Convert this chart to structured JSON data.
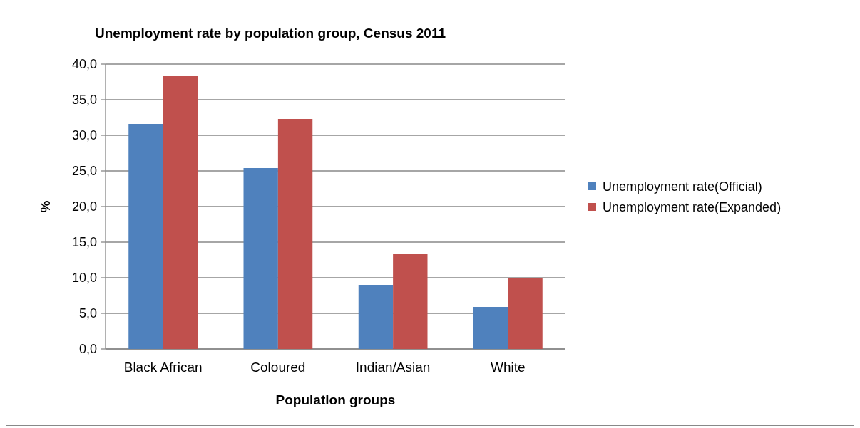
{
  "chart_data": {
    "type": "bar",
    "title": "Unemployment rate by population group, Census 2011",
    "xlabel": "Population groups",
    "ylabel": "%",
    "categories": [
      "Black African",
      "Coloured",
      "Indian/Asian",
      "White"
    ],
    "series": [
      {
        "name": "Unemployment rate(Official)",
        "color": "#4f81bd",
        "values": [
          31.6,
          25.4,
          9.0,
          5.9
        ]
      },
      {
        "name": "Unemployment rate(Expanded)",
        "color": "#c0504d",
        "values": [
          38.3,
          32.3,
          13.4,
          9.9
        ]
      }
    ],
    "ylim": [
      0,
      40
    ],
    "yticks": [
      {
        "value": 0,
        "label": "0,0"
      },
      {
        "value": 5,
        "label": "5,0"
      },
      {
        "value": 10,
        "label": "10,0"
      },
      {
        "value": 15,
        "label": "15,0"
      },
      {
        "value": 20,
        "label": "20,0"
      },
      {
        "value": 25,
        "label": "25,0"
      },
      {
        "value": 30,
        "label": "30,0"
      },
      {
        "value": 35,
        "label": "35,0"
      },
      {
        "value": 40,
        "label": "40,0"
      }
    ],
    "grid": "y",
    "legend": "right"
  }
}
